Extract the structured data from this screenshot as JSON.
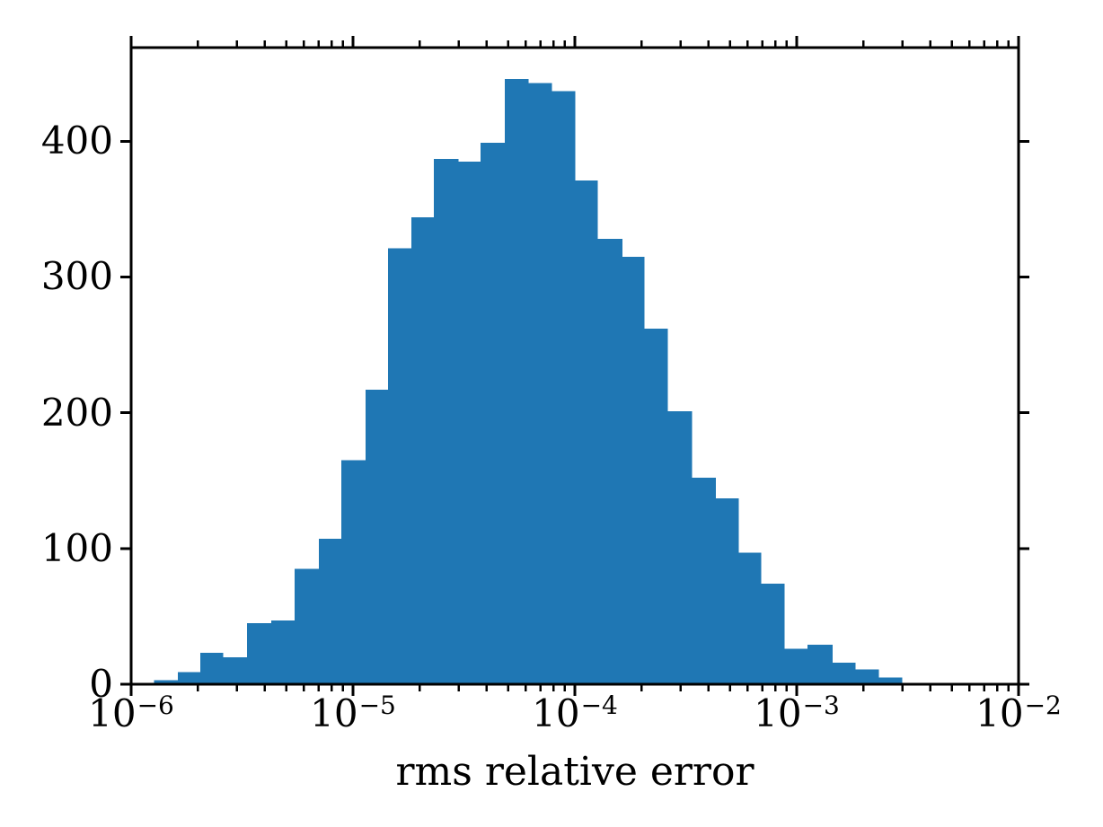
{
  "figure": {
    "background_color": "#ffffff",
    "axis_color": "#000000",
    "bar_color": "#1f77b4"
  },
  "chart_data": {
    "type": "bar",
    "subtype": "histogram",
    "title": "",
    "xlabel": "rms relative error",
    "ylabel": "",
    "x_scale": "log",
    "grid": false,
    "legend": "none",
    "xlim": [
      1e-06,
      0.01
    ],
    "ylim": [
      0,
      469
    ],
    "bar_color": "#1f77b4",
    "minor_ticks": "log minors at 2-9 per decade on top and bottom axes; ticks point outward on all four sides",
    "x_tick_labels": [
      {
        "base": "10",
        "exp": "−6",
        "value": 1e-06
      },
      {
        "base": "10",
        "exp": "−5",
        "value": 1e-05
      },
      {
        "base": "10",
        "exp": "−4",
        "value": 0.0001
      },
      {
        "base": "10",
        "exp": "−3",
        "value": 0.001
      },
      {
        "base": "10",
        "exp": "−2",
        "value": 0.01
      }
    ],
    "y_ticks": [
      0,
      100,
      200,
      300,
      400
    ],
    "y_tick_labels": [
      "0",
      "100",
      "200",
      "300",
      "400"
    ],
    "bin_edges": [
      1.27e-06,
      1.62e-06,
      2.05e-06,
      2.59e-06,
      3.33e-06,
      4.28e-06,
      5.45e-06,
      7.01e-06,
      8.85e-06,
      1.14e-05,
      1.44e-05,
      1.83e-05,
      2.31e-05,
      2.98e-05,
      3.76e-05,
      4.83e-05,
      6.15e-05,
      7.85e-05,
      0.0001,
      0.000126,
      0.000163,
      0.000205,
      0.000261,
      0.000336,
      0.000429,
      0.000545,
      0.000689,
      0.000877,
      0.00112,
      0.00144,
      0.00183,
      0.00233,
      0.00298
    ],
    "counts": [
      3,
      9,
      23,
      20,
      45,
      47,
      85,
      107,
      165,
      217,
      321,
      344,
      387,
      385,
      399,
      446,
      443,
      437,
      371,
      328,
      315,
      262,
      201,
      152,
      137,
      97,
      74,
      26,
      29,
      16,
      11,
      5
    ]
  }
}
